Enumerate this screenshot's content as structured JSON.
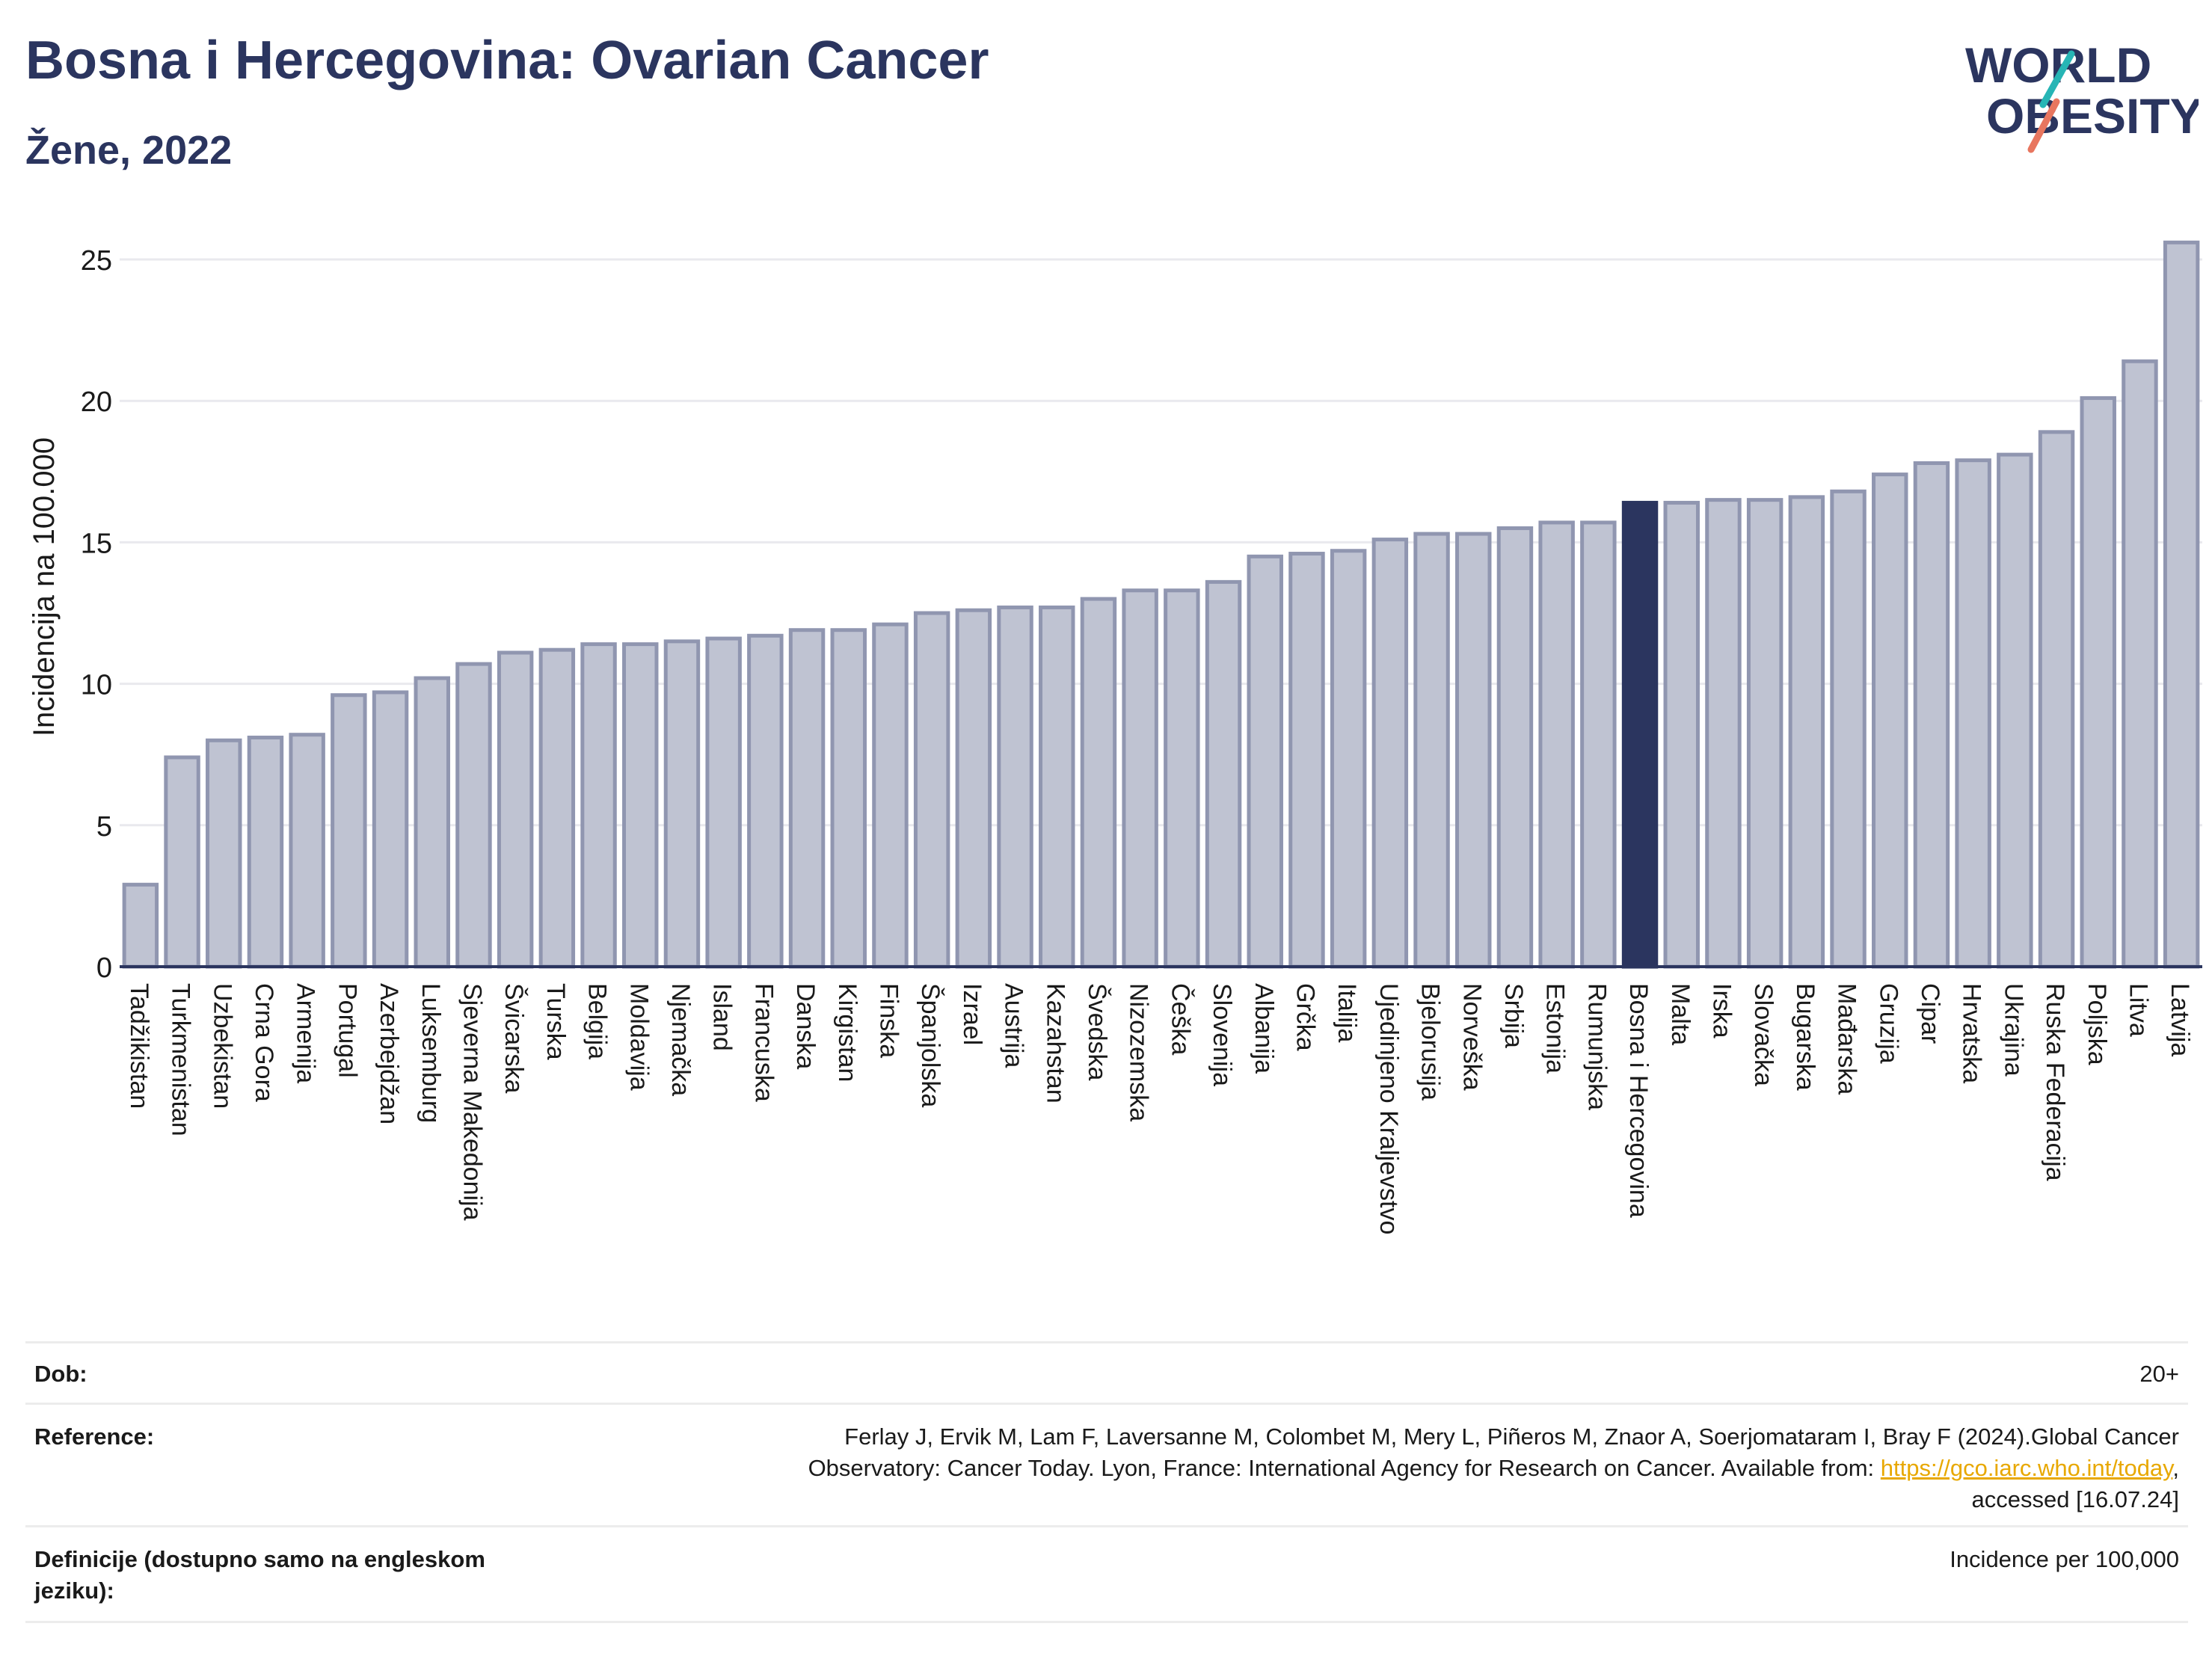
{
  "header": {
    "title": "Bosna i Hercegovina: Ovarian Cancer",
    "subtitle": "Žene, 2022",
    "logo_line1": "WORLD",
    "logo_line2": "OBESITY"
  },
  "colors": {
    "bar": "#bfc3d2",
    "bar_stroke": "#9096b0",
    "highlight": "#2b355f",
    "text": "#2b355f",
    "grid": "#e9e9ee",
    "logo_teal": "#27b5b5",
    "logo_coral": "#e8765f"
  },
  "chart_data": {
    "type": "bar",
    "ylabel": "Incidencija na 100.000",
    "ylim": [
      0,
      26
    ],
    "yticks": [
      0,
      5,
      10,
      15,
      20,
      25
    ],
    "grid": true,
    "highlight": "Bosna i Hercegovina",
    "categories": [
      "Tadžikistan",
      "Turkmenistan",
      "Uzbekistan",
      "Crna Gora",
      "Armenija",
      "Portugal",
      "Azerbejdžan",
      "Luksemburg",
      "Sjeverna Makedonija",
      "Švicarska",
      "Turska",
      "Belgija",
      "Moldavija",
      "Njemačka",
      "Island",
      "Francuska",
      "Danska",
      "Kirgistan",
      "Finska",
      "Španjolska",
      "Izrael",
      "Austrija",
      "Kazahstan",
      "Švedska",
      "Nizozemska",
      "Češka",
      "Slovenija",
      "Albanija",
      "Grčka",
      "Italija",
      "Ujedinjeno Kraljevstvo",
      "Bjelorusija",
      "Norveška",
      "Srbija",
      "Estonija",
      "Rumunjska",
      "Bosna i Hercegovina",
      "Malta",
      "Irska",
      "Slovačka",
      "Bugarska",
      "Mađarska",
      "Gruzija",
      "Cipar",
      "Hrvatska",
      "Ukrajina",
      "Ruska Federacija",
      "Poljska",
      "Litva",
      "Latvija"
    ],
    "values": [
      2.9,
      7.4,
      8.0,
      8.1,
      8.2,
      9.6,
      9.7,
      10.2,
      10.7,
      11.1,
      11.2,
      11.4,
      11.4,
      11.5,
      11.6,
      11.7,
      11.9,
      11.9,
      12.1,
      12.5,
      12.6,
      12.7,
      12.7,
      13.0,
      13.3,
      13.3,
      13.6,
      14.5,
      14.6,
      14.7,
      15.1,
      15.3,
      15.3,
      15.5,
      15.7,
      15.7,
      16.4,
      16.4,
      16.5,
      16.5,
      16.6,
      16.8,
      17.4,
      17.8,
      17.9,
      18.1,
      18.9,
      20.1,
      21.4,
      25.6
    ]
  },
  "footer": {
    "age_label": "Dob:",
    "age_value": "20+",
    "reference_label": "Reference:",
    "reference_line1": "Ferlay J, Ervik M, Lam F, Laversanne M, Colombet M, Mery L, Piñeros M, Znaor A, Soerjomataram I, Bray F (2024).Global Cancer",
    "reference_line2_pre": "Observatory: Cancer Today. Lyon, France: International Agency for Research on Cancer. Available from: ",
    "reference_link": "https://gco.iarc.who.int/today",
    "reference_line2_post": ",",
    "reference_line3": "accessed [16.07.24]",
    "definitions_label_1": "Definicije (dostupno samo na engleskom",
    "definitions_label_2": "jeziku):",
    "definitions_value": "Incidence per 100,000"
  }
}
